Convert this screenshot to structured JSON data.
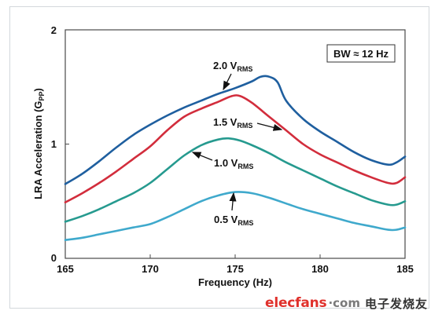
{
  "chart_data": {
    "type": "line",
    "title": "",
    "xlabel": "Frequency (Hz)",
    "ylabel": "LRA Acceleration (G",
    "ylabel_sub": "PP",
    "ylabel_end": ")",
    "xlim": [
      165,
      185
    ],
    "ylim": [
      0,
      2
    ],
    "xticks": [
      "165",
      "170",
      "175",
      "180",
      "185"
    ],
    "yticks": [
      "0",
      "1",
      "2"
    ],
    "grid": false,
    "annotation_box": "BW ≈ 12 Hz",
    "series": [
      {
        "label_main": "2.0 V",
        "label_sub": "RMS",
        "color": "#1f5f9f",
        "points": [
          [
            165,
            0.65
          ],
          [
            166,
            0.74
          ],
          [
            167,
            0.85
          ],
          [
            168,
            0.97
          ],
          [
            169,
            1.08
          ],
          [
            170,
            1.17
          ],
          [
            171,
            1.25
          ],
          [
            172,
            1.32
          ],
          [
            173,
            1.38
          ],
          [
            174,
            1.44
          ],
          [
            175,
            1.49
          ],
          [
            176,
            1.55
          ],
          [
            176.5,
            1.59
          ],
          [
            177,
            1.59
          ],
          [
            177.5,
            1.54
          ],
          [
            178,
            1.38
          ],
          [
            179,
            1.22
          ],
          [
            180,
            1.11
          ],
          [
            181,
            1.02
          ],
          [
            182,
            0.93
          ],
          [
            183,
            0.86
          ],
          [
            184,
            0.82
          ],
          [
            184.5,
            0.84
          ],
          [
            185,
            0.89
          ]
        ]
      },
      {
        "label_main": "1.5 V",
        "label_sub": "RMS",
        "color": "#d22d3c",
        "points": [
          [
            165,
            0.49
          ],
          [
            166,
            0.57
          ],
          [
            167,
            0.66
          ],
          [
            168,
            0.76
          ],
          [
            169,
            0.87
          ],
          [
            170,
            0.98
          ],
          [
            171,
            1.12
          ],
          [
            172,
            1.24
          ],
          [
            173,
            1.31
          ],
          [
            174,
            1.37
          ],
          [
            174.8,
            1.42
          ],
          [
            175.3,
            1.42
          ],
          [
            176,
            1.36
          ],
          [
            177,
            1.24
          ],
          [
            178,
            1.12
          ],
          [
            179,
            1.0
          ],
          [
            180,
            0.91
          ],
          [
            181,
            0.84
          ],
          [
            182,
            0.77
          ],
          [
            183,
            0.71
          ],
          [
            184,
            0.66
          ],
          [
            184.5,
            0.66
          ],
          [
            185,
            0.71
          ]
        ]
      },
      {
        "label_main": "1.0 V",
        "label_sub": "RMS",
        "color": "#269a8f",
        "points": [
          [
            165,
            0.32
          ],
          [
            166,
            0.37
          ],
          [
            167,
            0.43
          ],
          [
            168,
            0.5
          ],
          [
            169,
            0.57
          ],
          [
            170,
            0.66
          ],
          [
            171,
            0.78
          ],
          [
            172,
            0.9
          ],
          [
            173,
            0.99
          ],
          [
            174,
            1.04
          ],
          [
            174.6,
            1.05
          ],
          [
            175.3,
            1.03
          ],
          [
            176,
            0.99
          ],
          [
            177,
            0.92
          ],
          [
            178,
            0.84
          ],
          [
            179,
            0.77
          ],
          [
            180,
            0.7
          ],
          [
            181,
            0.63
          ],
          [
            182,
            0.57
          ],
          [
            183,
            0.51
          ],
          [
            184,
            0.47
          ],
          [
            184.5,
            0.47
          ],
          [
            185,
            0.5
          ]
        ]
      },
      {
        "label_main": "0.5 V",
        "label_sub": "RMS",
        "color": "#3fa9cc",
        "points": [
          [
            165,
            0.16
          ],
          [
            166,
            0.18
          ],
          [
            167,
            0.21
          ],
          [
            168,
            0.24
          ],
          [
            169,
            0.27
          ],
          [
            170,
            0.3
          ],
          [
            171,
            0.36
          ],
          [
            172,
            0.43
          ],
          [
            173,
            0.5
          ],
          [
            174,
            0.55
          ],
          [
            175,
            0.58
          ],
          [
            176,
            0.57
          ],
          [
            177,
            0.53
          ],
          [
            178,
            0.48
          ],
          [
            179,
            0.43
          ],
          [
            180,
            0.39
          ],
          [
            181,
            0.35
          ],
          [
            182,
            0.31
          ],
          [
            183,
            0.28
          ],
          [
            184,
            0.25
          ],
          [
            184.5,
            0.25
          ],
          [
            185,
            0.27
          ]
        ]
      }
    ]
  },
  "watermark": {
    "text": "elecfans",
    "dotcom": "·com",
    "cn": "电子发烧友"
  }
}
